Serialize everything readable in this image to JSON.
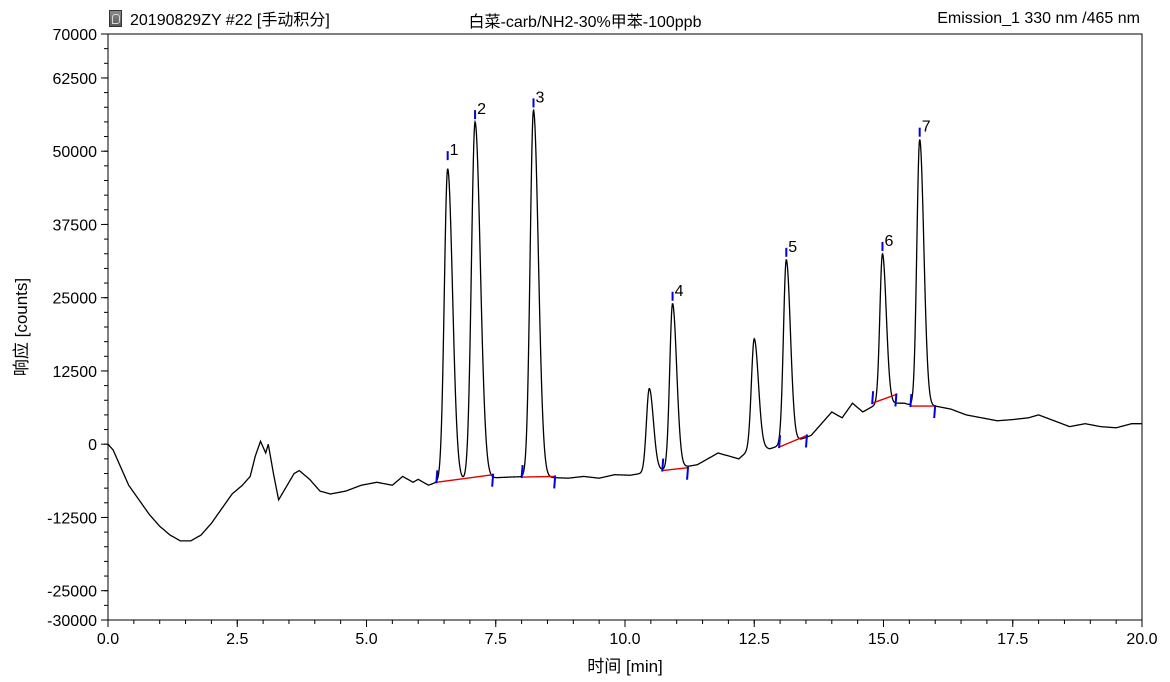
{
  "header": {
    "left": "20190829ZY #22 [手动积分]",
    "center": "白菜-carb/NH2-30%甲苯-100ppb",
    "right": "Emission_1 330 nm /465 nm"
  },
  "chart_data": {
    "type": "line",
    "title": "白菜-carb/NH2-30%甲苯-100ppb",
    "xlabel": "时间 [min]",
    "ylabel": "响应 [counts]",
    "xlim": [
      0.0,
      20.0
    ],
    "ylim": [
      -30000,
      70000
    ],
    "x_ticks": [
      "0.0",
      "2.5",
      "5.0",
      "7.5",
      "10.0",
      "12.5",
      "15.0",
      "17.5",
      "20.0"
    ],
    "y_ticks": [
      "-30000",
      "-25000",
      "-12500",
      "0",
      "12500",
      "25000",
      "37500",
      "50000",
      "62500",
      "70000"
    ],
    "grid": false,
    "colors": {
      "trace": "#000000",
      "baseline": "#e00000",
      "markers": "#0000e0"
    },
    "baseline_offset": -2000,
    "noise": [
      [
        0.0,
        0
      ],
      [
        0.1,
        -1000
      ],
      [
        0.2,
        -3000
      ],
      [
        0.4,
        -7000
      ],
      [
        0.6,
        -9500
      ],
      [
        0.8,
        -12000
      ],
      [
        1.0,
        -14000
      ],
      [
        1.2,
        -15500
      ],
      [
        1.4,
        -16500
      ],
      [
        1.6,
        -16500
      ],
      [
        1.8,
        -15500
      ],
      [
        2.0,
        -13500
      ],
      [
        2.2,
        -11000
      ],
      [
        2.4,
        -8500
      ],
      [
        2.6,
        -7000
      ],
      [
        2.75,
        -5500
      ],
      [
        2.85,
        -2000
      ],
      [
        2.95,
        500
      ],
      [
        3.05,
        -1500
      ],
      [
        3.1,
        0
      ],
      [
        3.2,
        -5000
      ],
      [
        3.3,
        -9500
      ],
      [
        3.4,
        -8000
      ],
      [
        3.5,
        -6500
      ],
      [
        3.6,
        -5000
      ],
      [
        3.7,
        -4500
      ],
      [
        3.9,
        -6000
      ],
      [
        4.1,
        -8000
      ],
      [
        4.3,
        -8500
      ],
      [
        4.6,
        -8000
      ],
      [
        4.9,
        -7000
      ],
      [
        5.2,
        -6500
      ],
      [
        5.5,
        -7000
      ],
      [
        5.7,
        -5500
      ],
      [
        5.9,
        -6500
      ],
      [
        6.0,
        -6000
      ],
      [
        6.2,
        -7000
      ],
      [
        6.35,
        -6500
      ],
      [
        6.8,
        -6200
      ],
      [
        7.3,
        -5800
      ],
      [
        7.8,
        -5600
      ],
      [
        8.2,
        -5500
      ],
      [
        8.6,
        -5700
      ],
      [
        8.9,
        -5800
      ],
      [
        9.2,
        -5500
      ],
      [
        9.5,
        -5800
      ],
      [
        9.8,
        -5200
      ],
      [
        10.1,
        -5300
      ],
      [
        10.3,
        -5000
      ],
      [
        10.6,
        -4500
      ],
      [
        10.8,
        -4300
      ],
      [
        11.0,
        -4000
      ],
      [
        11.2,
        -3800
      ],
      [
        11.4,
        -3500
      ],
      [
        11.6,
        -2500
      ],
      [
        11.8,
        -1500
      ],
      [
        12.0,
        -2000
      ],
      [
        12.2,
        -2500
      ],
      [
        12.4,
        -1000
      ],
      [
        12.6,
        -500
      ],
      [
        12.8,
        -800
      ],
      [
        13.0,
        -200
      ],
      [
        13.3,
        500
      ],
      [
        13.6,
        1500
      ],
      [
        13.8,
        3500
      ],
      [
        14.0,
        5500
      ],
      [
        14.2,
        4500
      ],
      [
        14.4,
        7000
      ],
      [
        14.6,
        5500
      ],
      [
        14.8,
        6500
      ],
      [
        15.0,
        7500
      ],
      [
        15.2,
        7000
      ],
      [
        15.4,
        7000
      ],
      [
        15.6,
        6500
      ],
      [
        15.8,
        6500
      ],
      [
        16.0,
        6500
      ],
      [
        16.3,
        6000
      ],
      [
        16.6,
        5000
      ],
      [
        16.9,
        4500
      ],
      [
        17.2,
        4000
      ],
      [
        17.5,
        4200
      ],
      [
        17.8,
        4500
      ],
      [
        18.0,
        5000
      ],
      [
        18.3,
        4000
      ],
      [
        18.6,
        3000
      ],
      [
        18.9,
        3500
      ],
      [
        19.2,
        3000
      ],
      [
        19.5,
        2800
      ],
      [
        19.8,
        3500
      ],
      [
        20.0,
        3500
      ]
    ],
    "peaks": [
      {
        "label": "1",
        "rt": 6.57,
        "apex": 47000,
        "width": 0.065,
        "marker_y": 49500
      },
      {
        "label": "2",
        "rt": 7.1,
        "apex": 55000,
        "width": 0.07,
        "marker_y": 56500
      },
      {
        "label": "3",
        "rt": 8.23,
        "apex": 57000,
        "width": 0.065,
        "marker_y": 58500
      },
      {
        "label": "4",
        "rt": 10.92,
        "apex": 24000,
        "width": 0.055,
        "marker_y": 25500
      },
      {
        "label": "5",
        "rt": 13.12,
        "apex": 31500,
        "width": 0.055,
        "marker_y": 33000
      },
      {
        "label": "6",
        "rt": 14.98,
        "apex": 32500,
        "width": 0.05,
        "marker_y": 34000
      },
      {
        "label": "7",
        "rt": 15.7,
        "apex": 52000,
        "width": 0.055,
        "marker_y": 53500
      }
    ],
    "extra_peaks": [
      {
        "rt": 10.47,
        "apex": 9500,
        "width": 0.055
      },
      {
        "rt": 12.5,
        "apex": 18000,
        "width": 0.055
      }
    ],
    "baselines": [
      [
        [
          6.35,
          -6500
        ],
        [
          7.45,
          -5200
        ]
      ],
      [
        [
          8.0,
          -5600
        ],
        [
          8.65,
          -5500
        ]
      ],
      [
        [
          10.72,
          -4500
        ],
        [
          11.22,
          -4000
        ]
      ],
      [
        [
          12.98,
          -500
        ],
        [
          13.52,
          1500
        ]
      ],
      [
        [
          14.78,
          7000
        ],
        [
          15.25,
          8500
        ]
      ],
      [
        [
          15.52,
          6500
        ],
        [
          16.0,
          6500
        ]
      ]
    ]
  }
}
